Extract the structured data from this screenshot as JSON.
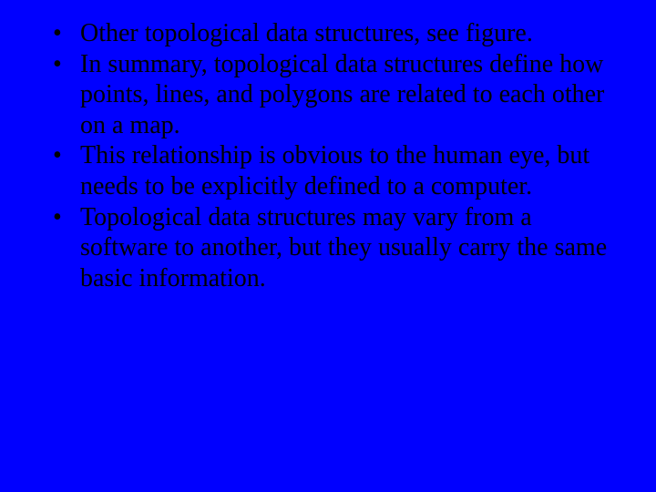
{
  "slide": {
    "background_color": "#0000ff",
    "text_color": "#000000",
    "font_family": "Times New Roman",
    "font_size_pt": 28,
    "bullets": [
      {
        "text": "Other topological data structures, see figure."
      },
      {
        "text": "In summary, topological data structures define how points, lines, and polygons are related to each other on a map."
      },
      {
        "text": "This relationship is obvious to the human eye, but needs to be explicitly defined to a computer."
      },
      {
        "text": "Topological data structures may vary from a software to another, but they usually carry the same basic information."
      }
    ]
  }
}
